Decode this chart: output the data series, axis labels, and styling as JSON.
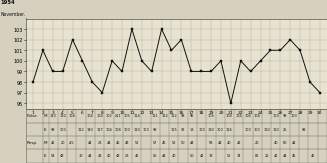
{
  "title_line1": "1954",
  "title_line2": "November.",
  "x_labels": [
    "1",
    "2",
    "3",
    "4",
    "5",
    "6",
    "7",
    "8",
    "9",
    "10",
    "11",
    "12",
    "13",
    "14",
    "15",
    "16",
    "17",
    "18",
    "19",
    "20",
    "21",
    "22",
    "23",
    "24",
    "25",
    "26",
    "27",
    "28",
    "29",
    "30"
  ],
  "y_values": [
    98,
    101,
    99,
    99,
    102,
    100,
    98,
    97,
    100,
    99,
    103,
    100,
    99,
    103,
    101,
    102,
    99,
    99,
    99,
    100,
    96,
    100,
    99,
    100,
    101,
    101,
    102,
    101,
    98,
    97
  ],
  "ylim": [
    95.5,
    104.0
  ],
  "yticks": [
    96,
    97,
    98,
    99,
    100,
    101,
    102,
    103
  ],
  "bg_color": "#d6d0bf",
  "chart_bg": "#e8e3d0",
  "line_color": "#111111",
  "grid_color": "#999988",
  "table_rows": [
    [
      "Pulse",
      "M",
      "110",
      "110",
      "104",
      "",
      "104",
      "104",
      "102",
      "211",
      "105",
      "114",
      "",
      "111",
      "112",
      "112",
      "98",
      "96",
      "",
      "106",
      "",
      "108",
      "104",
      "104",
      "104",
      "",
      "103",
      "98",
      "103"
    ],
    [
      "",
      "E",
      "98",
      "100",
      "",
      "112",
      "140",
      "117",
      "104",
      "108",
      "100",
      "110",
      "100",
      "98",
      "",
      "115",
      "92",
      "18",
      "100",
      "130",
      "100",
      "116",
      "",
      "100",
      "100",
      "110",
      "110",
      "25",
      "",
      "98"
    ],
    [
      "Resp.",
      "M",
      "42",
      "20",
      "4.5",
      "",
      "44",
      "28",
      "44",
      "46",
      "48",
      "52",
      "",
      "57",
      "45",
      "52",
      "50",
      "44",
      "",
      "58",
      "44",
      "40",
      "42",
      "",
      "20",
      "",
      "40",
      "60",
      "44",
      "",
      ""
    ],
    [
      "",
      "E",
      "54",
      "48",
      "",
      "30",
      "44",
      "43",
      "40",
      "48",
      "28",
      "46",
      "",
      "56",
      "44",
      "40",
      "",
      "50",
      "42",
      "38",
      "",
      "52",
      "74",
      "",
      "82",
      "26",
      "42",
      "44",
      "45",
      "",
      "46"
    ]
  ]
}
